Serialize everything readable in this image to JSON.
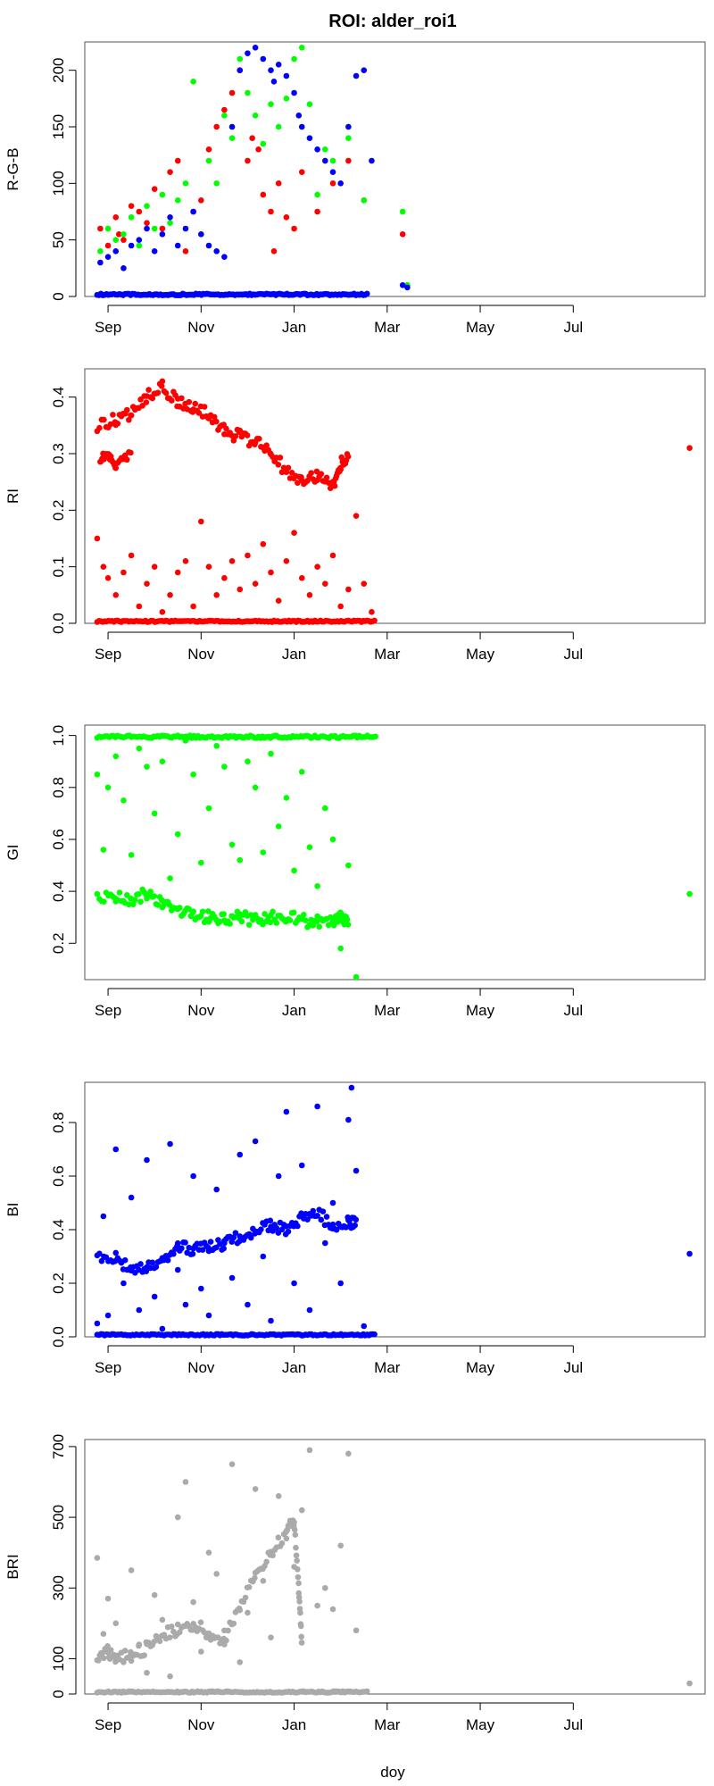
{
  "title": "ROI: alder_roi1",
  "xlabel": "doy",
  "chart_data": [
    {
      "type": "scatter",
      "ylabel": "R-G-B",
      "ylim": [
        0,
        225
      ],
      "yticks": [
        0,
        50,
        100,
        150,
        200
      ],
      "xticks": [
        "Sep",
        "Nov",
        "Jan",
        "Mar",
        "May",
        "Jul"
      ],
      "series": [
        {
          "color": "#ff0000",
          "x": [
            -50,
            -45,
            -40,
            -38,
            -35,
            -30,
            -25,
            -20,
            -15,
            -10,
            -5,
            0,
            5,
            10,
            15,
            20,
            25,
            30,
            35,
            40,
            45,
            48,
            52,
            55,
            60,
            62,
            65,
            70,
            75,
            80,
            90,
            100,
            110,
            120,
            145,
            148
          ],
          "y": [
            60,
            45,
            70,
            55,
            50,
            80,
            75,
            65,
            95,
            60,
            110,
            120,
            40,
            75,
            85,
            130,
            150,
            165,
            180,
            200,
            120,
            140,
            130,
            90,
            75,
            40,
            100,
            70,
            60,
            110,
            75,
            100,
            120,
            85,
            55,
            10
          ]
        },
        {
          "color": "#00ff00",
          "x": [
            -50,
            -45,
            -40,
            -35,
            -30,
            -25,
            -20,
            -15,
            -10,
            -5,
            0,
            5,
            10,
            15,
            20,
            25,
            30,
            35,
            40,
            45,
            50,
            55,
            60,
            65,
            70,
            75,
            80,
            85,
            90,
            95,
            100,
            110,
            120,
            145,
            148
          ],
          "y": [
            40,
            60,
            50,
            55,
            70,
            45,
            80,
            60,
            90,
            65,
            85,
            100,
            190,
            55,
            120,
            100,
            160,
            140,
            210,
            180,
            160,
            135,
            170,
            150,
            175,
            210,
            220,
            170,
            90,
            130,
            120,
            140,
            85,
            75,
            10
          ]
        },
        {
          "color": "#0000ff",
          "x": [
            -50,
            -45,
            -40,
            -35,
            -30,
            -25,
            -20,
            -15,
            -10,
            -5,
            0,
            5,
            10,
            15,
            20,
            25,
            30,
            35,
            40,
            45,
            50,
            55,
            60,
            62,
            65,
            70,
            75,
            78,
            80,
            85,
            90,
            95,
            100,
            105,
            110,
            115,
            120,
            125,
            145,
            148
          ],
          "y": [
            30,
            35,
            40,
            25,
            45,
            50,
            60,
            40,
            55,
            70,
            45,
            60,
            75,
            55,
            45,
            40,
            35,
            150,
            200,
            215,
            220,
            210,
            200,
            190,
            205,
            195,
            180,
            160,
            150,
            140,
            130,
            120,
            110,
            100,
            150,
            195,
            200,
            120,
            10,
            8
          ]
        }
      ],
      "zero_run": {
        "x_start": -52,
        "x_end": 123
      }
    },
    {
      "type": "scatter",
      "ylabel": "RI",
      "ylim": [
        0,
        0.45
      ],
      "yticks": [
        0.0,
        0.1,
        0.2,
        0.3,
        0.4
      ],
      "xticks": [
        "Sep",
        "Nov",
        "Jan",
        "Mar",
        "May",
        "Jul"
      ],
      "series": [
        {
          "color": "#ff0000",
          "band_upper": {
            "x": [
              -52,
              -40,
              -30,
              -20,
              -10,
              0,
              10,
              20,
              30,
              40,
              50,
              60,
              70,
              80,
              90,
              100,
              105,
              110
            ],
            "y": [
              0.35,
              0.36,
              0.37,
              0.4,
              0.42,
              0.39,
              0.38,
              0.37,
              0.34,
              0.33,
              0.32,
              0.3,
              0.27,
              0.25,
              0.26,
              0.24,
              0.28,
              0.3
            ]
          },
          "band_lower": {
            "x": [
              -50,
              -45,
              -40,
              -30
            ],
            "y": [
              0.29,
              0.3,
              0.28,
              0.3
            ]
          },
          "scatter": {
            "x": [
              -52,
              -48,
              -45,
              -40,
              -35,
              -30,
              -25,
              -20,
              -15,
              -10,
              -5,
              0,
              5,
              10,
              15,
              20,
              25,
              30,
              35,
              40,
              45,
              50,
              55,
              60,
              65,
              70,
              75,
              80,
              85,
              90,
              95,
              100,
              105,
              110,
              115,
              120,
              125
            ],
            "y": [
              0.15,
              0.1,
              0.08,
              0.05,
              0.09,
              0.12,
              0.03,
              0.07,
              0.1,
              0.02,
              0.05,
              0.09,
              0.11,
              0.03,
              0.18,
              0.1,
              0.05,
              0.08,
              0.11,
              0.06,
              0.12,
              0.07,
              0.14,
              0.09,
              0.04,
              0.11,
              0.16,
              0.08,
              0.05,
              0.1,
              0.07,
              0.12,
              0.03,
              0.06,
              0.19,
              0.07,
              0.02
            ]
          },
          "outlier": {
            "x": 330,
            "y": 0.31
          }
        }
      ],
      "zero_run": {
        "x_start": -52,
        "x_end": 128
      }
    },
    {
      "type": "scatter",
      "ylabel": "GI",
      "ylim": [
        0.06,
        1.04
      ],
      "yticks": [
        0.2,
        0.4,
        0.6,
        0.8,
        1.0
      ],
      "xticks": [
        "Sep",
        "Nov",
        "Jan",
        "Mar",
        "May",
        "Jul"
      ],
      "series": [
        {
          "color": "#00ff00",
          "band": {
            "x": [
              -52,
              -40,
              -30,
              -20,
              -10,
              0,
              10,
              20,
              30,
              40,
              50,
              60,
              70,
              80,
              90,
              100,
              105,
              110
            ],
            "y": [
              0.37,
              0.38,
              0.37,
              0.39,
              0.36,
              0.33,
              0.3,
              0.3,
              0.29,
              0.3,
              0.29,
              0.3,
              0.3,
              0.29,
              0.28,
              0.29,
              0.3,
              0.29
            ]
          },
          "scatter": {
            "x": [
              -52,
              -48,
              -45,
              -40,
              -35,
              -30,
              -25,
              -20,
              -15,
              -10,
              -5,
              0,
              5,
              10,
              15,
              20,
              25,
              30,
              35,
              40,
              45,
              50,
              55,
              60,
              65,
              70,
              75,
              80,
              85,
              90,
              95,
              100,
              105,
              110,
              115
            ],
            "y": [
              0.85,
              0.56,
              0.8,
              0.92,
              0.75,
              0.54,
              0.95,
              0.88,
              0.7,
              0.9,
              0.45,
              0.62,
              0.98,
              0.85,
              0.51,
              0.72,
              0.96,
              0.88,
              0.58,
              0.52,
              0.9,
              0.8,
              0.55,
              0.93,
              0.65,
              0.76,
              0.48,
              0.86,
              0.57,
              0.42,
              0.72,
              0.6,
              0.18,
              0.5,
              0.07
            ]
          },
          "top_run": {
            "x_start": -52,
            "x_end": 128,
            "y": 1.0
          },
          "outlier": {
            "x": 330,
            "y": 0.39
          }
        }
      ]
    },
    {
      "type": "scatter",
      "ylabel": "BI",
      "ylim": [
        0,
        0.95
      ],
      "yticks": [
        0.0,
        0.2,
        0.4,
        0.6,
        0.8
      ],
      "xticks": [
        "Sep",
        "Nov",
        "Jan",
        "Mar",
        "May",
        "Jul"
      ],
      "series": [
        {
          "color": "#0000ff",
          "band": {
            "x": [
              -52,
              -40,
              -30,
              -20,
              -10,
              0,
              10,
              20,
              30,
              40,
              50,
              60,
              70,
              80,
              90,
              100,
              110,
              115
            ],
            "y": [
              0.3,
              0.29,
              0.26,
              0.25,
              0.29,
              0.33,
              0.33,
              0.34,
              0.35,
              0.37,
              0.4,
              0.42,
              0.4,
              0.44,
              0.46,
              0.42,
              0.43,
              0.42
            ]
          },
          "scatter": {
            "x": [
              -52,
              -48,
              -45,
              -40,
              -35,
              -30,
              -25,
              -20,
              -15,
              -10,
              -5,
              0,
              5,
              10,
              15,
              20,
              25,
              30,
              35,
              40,
              45,
              50,
              55,
              60,
              65,
              70,
              75,
              80,
              85,
              90,
              95,
              100,
              105,
              110,
              112,
              115,
              120
            ],
            "y": [
              0.05,
              0.45,
              0.08,
              0.7,
              0.2,
              0.52,
              0.1,
              0.66,
              0.15,
              0.03,
              0.72,
              0.25,
              0.12,
              0.6,
              0.18,
              0.08,
              0.55,
              0.35,
              0.22,
              0.68,
              0.12,
              0.73,
              0.3,
              0.06,
              0.6,
              0.84,
              0.2,
              0.64,
              0.1,
              0.86,
              0.35,
              0.5,
              0.2,
              0.81,
              0.93,
              0.62,
              0.04
            ]
          },
          "outlier": {
            "x": 330,
            "y": 0.31
          }
        }
      ],
      "zero_run": {
        "x_start": -52,
        "x_end": 128
      }
    },
    {
      "type": "scatter",
      "ylabel": "BRI",
      "ylim": [
        0,
        720
      ],
      "yticks": [
        0,
        100,
        300,
        500,
        700
      ],
      "xticks": [
        "Sep",
        "Nov",
        "Jan",
        "Mar",
        "May",
        "Jul"
      ],
      "series": [
        {
          "color": "#aaaaaa",
          "band": {
            "x": [
              -52,
              -45,
              -40,
              -30,
              -20,
              -10,
              0,
              10,
              20,
              30,
              40,
              50,
              60,
              70,
              75,
              78,
              80
            ],
            "y": [
              110,
              120,
              100,
              110,
              130,
              170,
              180,
              200,
              170,
              150,
              250,
              330,
              400,
              460,
              490,
              300,
              150
            ]
          },
          "scatter": {
            "x": [
              -52,
              -48,
              -45,
              -40,
              -35,
              -30,
              -25,
              -20,
              -15,
              -10,
              -5,
              0,
              5,
              10,
              15,
              20,
              25,
              30,
              35,
              40,
              45,
              50,
              55,
              60,
              65,
              70,
              75,
              80,
              85,
              90,
              95,
              100,
              105,
              110,
              115
            ],
            "y": [
              385,
              170,
              270,
              200,
              90,
              350,
              140,
              60,
              280,
              210,
              50,
              500,
              600,
              260,
              120,
              400,
              340,
              180,
              650,
              90,
              230,
              580,
              320,
              160,
              560,
              440,
              360,
              520,
              690,
              250,
              300,
              240,
              420,
              680,
              180
            ]
          },
          "outlier": {
            "x": 330,
            "y": 30
          }
        }
      ],
      "zero_run": {
        "x_start": -52,
        "x_end": 123
      }
    }
  ]
}
